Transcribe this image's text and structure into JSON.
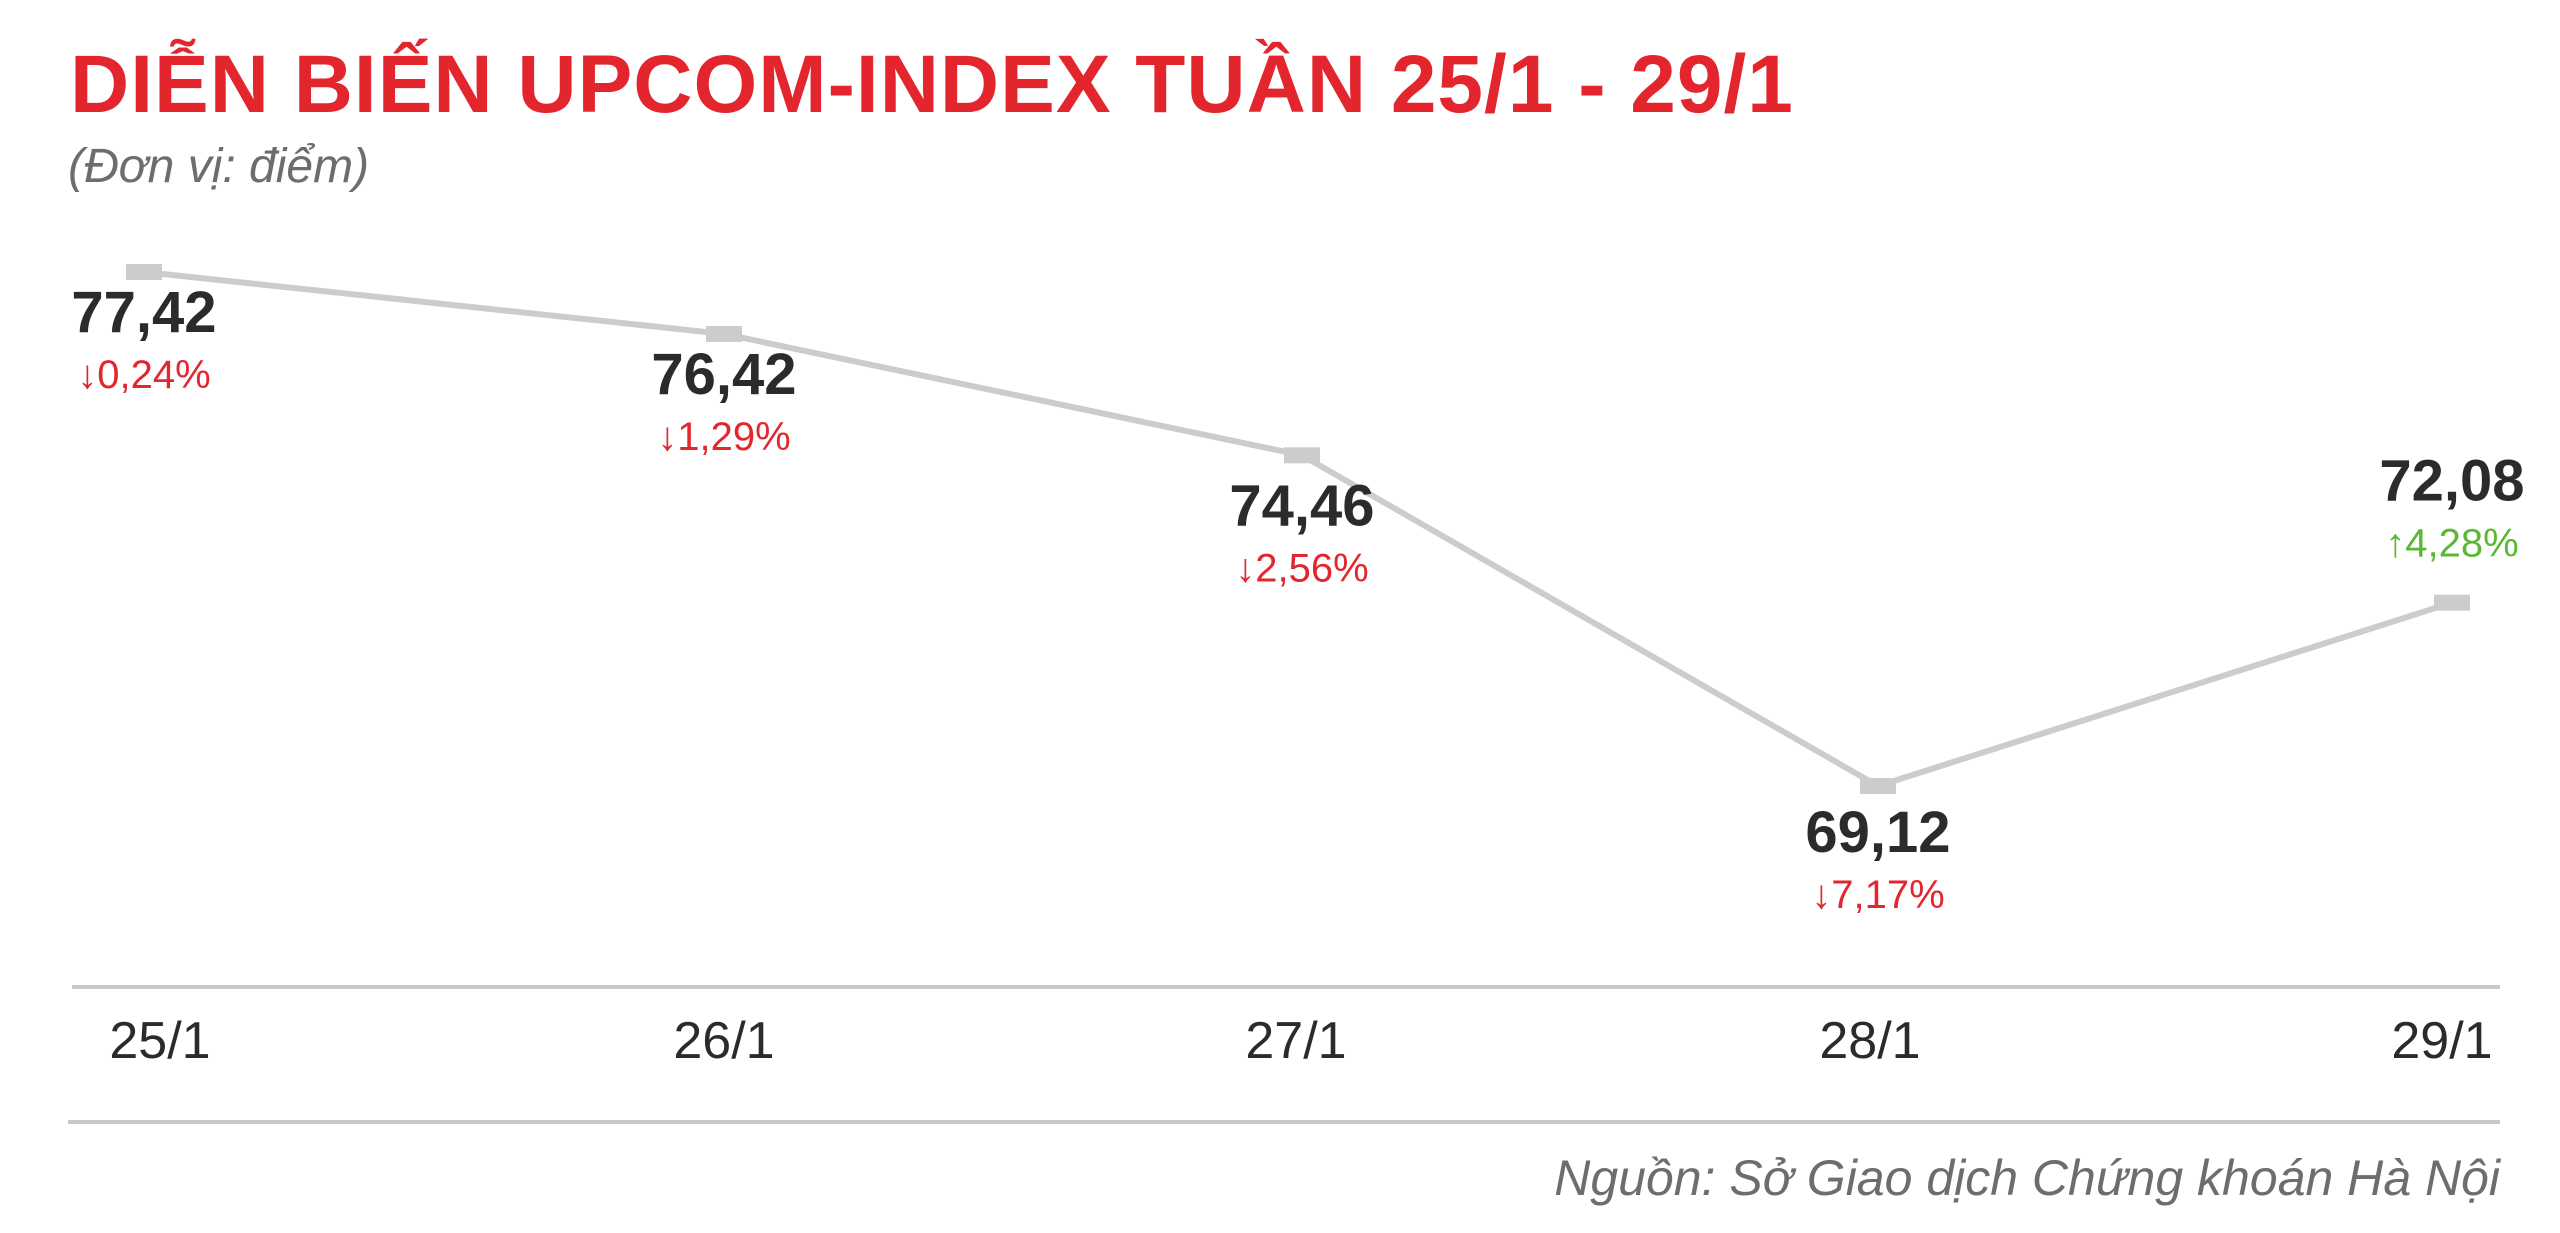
{
  "colors": {
    "title": "#e3262d",
    "down": "#e3262d",
    "up": "#5bb832",
    "line": "#cccccc",
    "axis": "#c8c8c8",
    "text": "#2b2b2b",
    "muted": "#6d6d6d"
  },
  "chart_data": {
    "type": "line",
    "title": "DIỄN BIẾN UPCOM-INDEX TUẦN 25/1 - 29/1",
    "subtitle": "(Đơn vị: điểm)",
    "source": "Nguồn: Sở Giao dịch Chứng khoán Hà Nội",
    "categories": [
      "25/1",
      "26/1",
      "27/1",
      "28/1",
      "29/1"
    ],
    "values": [
      77.42,
      76.42,
      74.46,
      69.12,
      72.08
    ],
    "value_labels": [
      "77,42",
      "76,42",
      "74,46",
      "69,12",
      "72,08"
    ],
    "changes": [
      {
        "text": "0,24%",
        "direction": "down"
      },
      {
        "text": "1,29%",
        "direction": "down"
      },
      {
        "text": "2,56%",
        "direction": "down"
      },
      {
        "text": "7,17%",
        "direction": "down"
      },
      {
        "text": "4,28%",
        "direction": "up"
      }
    ],
    "grid": false,
    "legend": "none"
  }
}
